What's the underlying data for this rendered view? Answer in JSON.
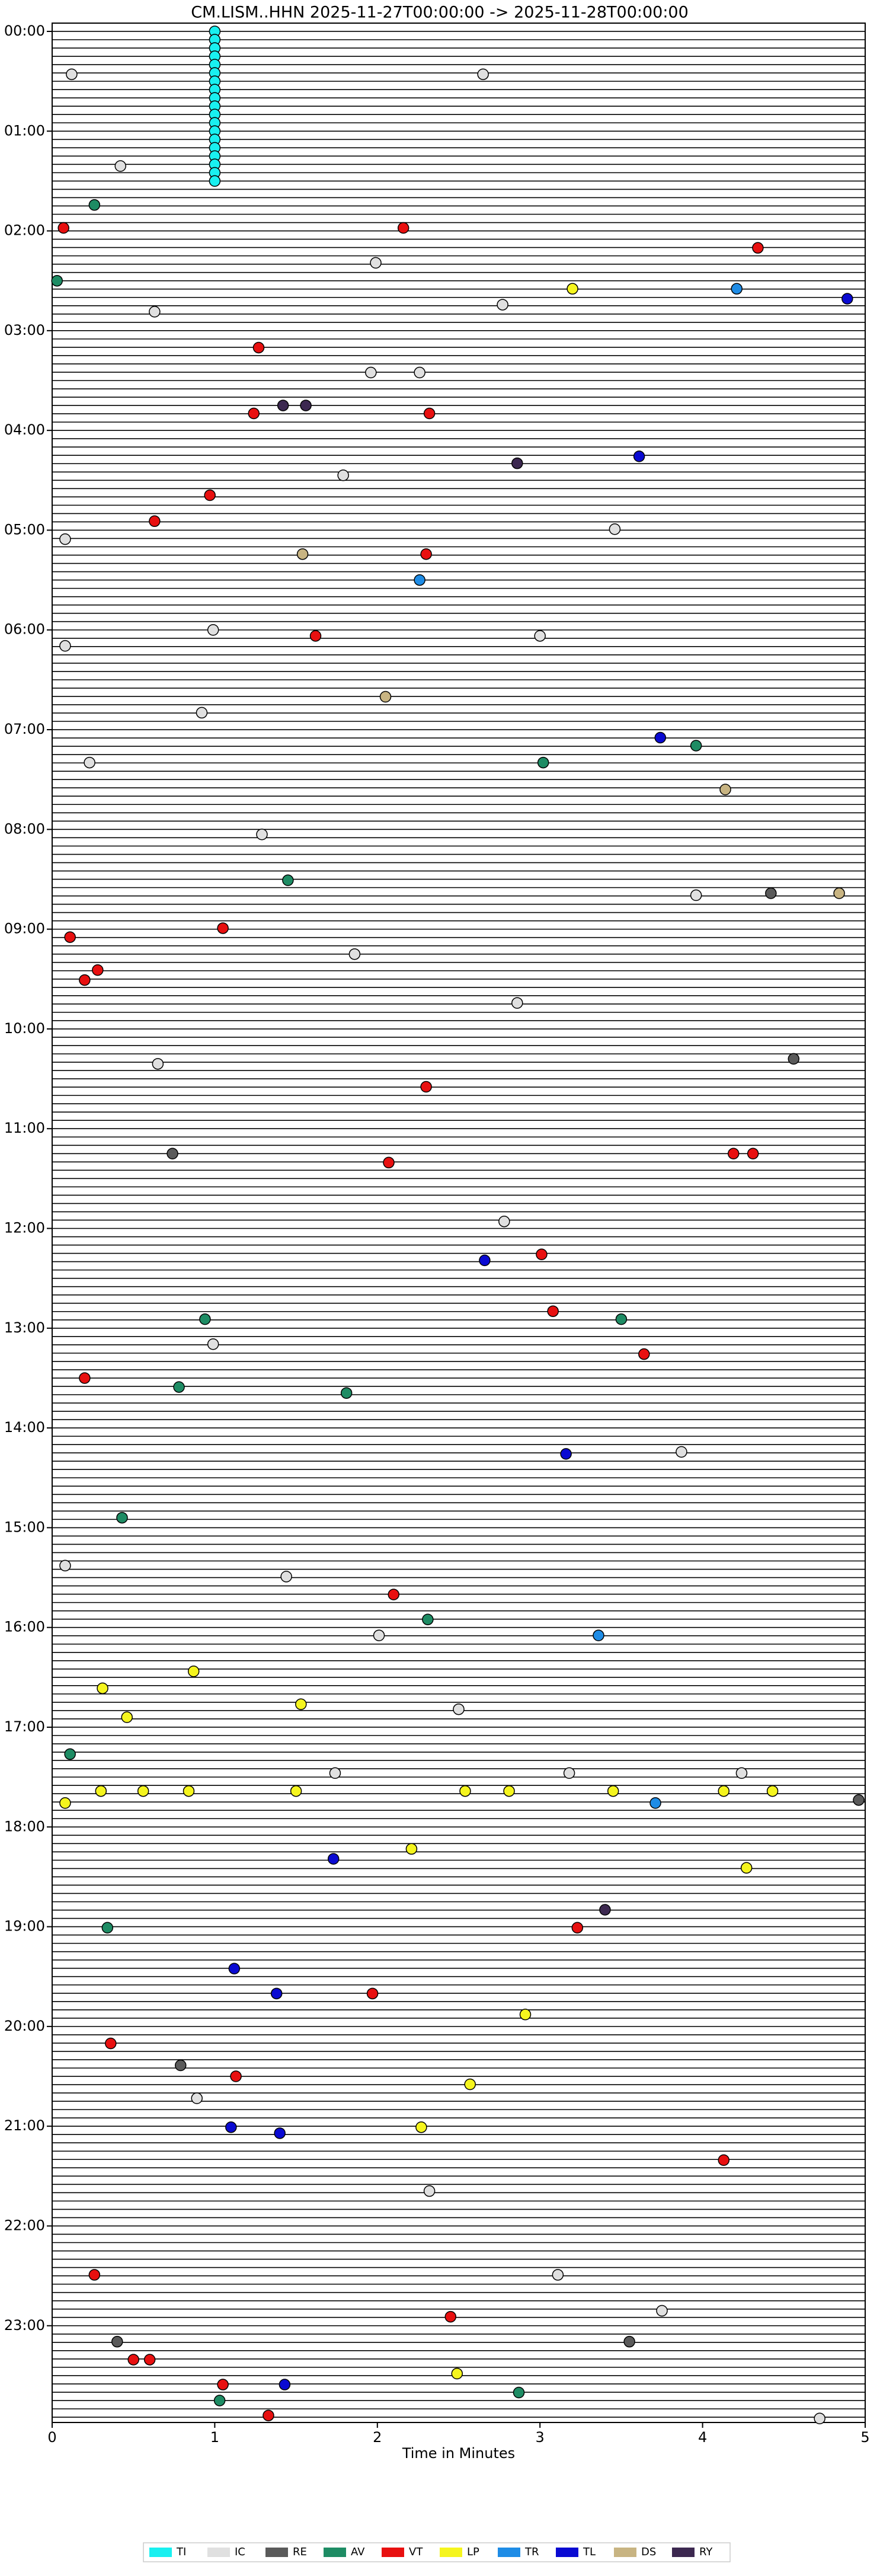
{
  "chart_data": {
    "type": "helicorder",
    "title": "CM.LISM..HHN  2025-11-27T00:00:00 -> 2025-11-28T00:00:00",
    "x_label": "Time in Minutes",
    "xlim": [
      0,
      5
    ],
    "xticks": [
      0,
      1,
      2,
      3,
      4,
      5
    ],
    "ylim": [
      -0.083,
      23.97
    ],
    "yticks": [
      {
        "value": 0,
        "label": "00:00"
      },
      {
        "value": 1,
        "label": "01:00"
      },
      {
        "value": 2,
        "label": "02:00"
      },
      {
        "value": 3,
        "label": "03:00"
      },
      {
        "value": 4,
        "label": "04:00"
      },
      {
        "value": 5,
        "label": "05:00"
      },
      {
        "value": 6,
        "label": "06:00"
      },
      {
        "value": 7,
        "label": "07:00"
      },
      {
        "value": 8,
        "label": "08:00"
      },
      {
        "value": 9,
        "label": "09:00"
      },
      {
        "value": 10,
        "label": "10:00"
      },
      {
        "value": 11,
        "label": "11:00"
      },
      {
        "value": 12,
        "label": "12:00"
      },
      {
        "value": 13,
        "label": "13:00"
      },
      {
        "value": 14,
        "label": "14:00"
      },
      {
        "value": 15,
        "label": "15:00"
      },
      {
        "value": 16,
        "label": "16:00"
      },
      {
        "value": 17,
        "label": "17:00"
      },
      {
        "value": 18,
        "label": "18:00"
      },
      {
        "value": 19,
        "label": "19:00"
      },
      {
        "value": 20,
        "label": "20:00"
      },
      {
        "value": 21,
        "label": "21:00"
      },
      {
        "value": 22,
        "label": "22:00"
      },
      {
        "value": 23,
        "label": "23:00"
      }
    ],
    "series": [
      {
        "name": "TI",
        "color": "#19f0f0",
        "x": [
          1,
          1,
          1,
          1,
          1,
          1,
          1,
          1,
          1,
          1,
          1,
          1,
          1,
          1,
          1,
          1,
          1,
          1,
          1
        ],
        "values": [
          0,
          0.083,
          0.167,
          0.25,
          0.333,
          0.417,
          0.5,
          0.583,
          0.667,
          0.75,
          0.833,
          0.917,
          1,
          1.083,
          1.167,
          1.25,
          1.333,
          1.417,
          1.5
        ]
      },
      {
        "name": "IC",
        "color": "#e0e0e0",
        "x": [
          0.12,
          2.65,
          0.42,
          1.99,
          0.63,
          2.77,
          1.96,
          2.26,
          0.08,
          1.79,
          3.46,
          0.99,
          0.08,
          3.0,
          0.92,
          0.23,
          1.29,
          3.96,
          1.86,
          2.86,
          0.65,
          2.78,
          0.99,
          3.87,
          0.08,
          1.44,
          2.01,
          2.5,
          1.74,
          3.18,
          4.24,
          0.89,
          2.32,
          3.11,
          3.75,
          4.72
        ],
        "values": [
          0.43,
          0.43,
          1.35,
          2.32,
          2.81,
          2.74,
          3.42,
          3.42,
          5.09,
          4.45,
          4.99,
          6.0,
          6.16,
          6.06,
          6.83,
          7.33,
          8.05,
          8.66,
          9.25,
          9.74,
          10.35,
          11.93,
          13.16,
          14.24,
          15.38,
          15.49,
          16.08,
          16.82,
          17.46,
          17.46,
          17.46,
          20.72,
          21.65,
          22.49,
          22.85,
          23.93
        ]
      },
      {
        "name": "RE",
        "color": "#5a5a5a",
        "x": [
          0.74,
          4.56,
          0.79,
          0.4,
          3.55,
          4.96,
          4.42
        ],
        "values": [
          11.25,
          10.3,
          20.39,
          23.16,
          23.16,
          17.73,
          8.64
        ]
      },
      {
        "name": "AV",
        "color": "#1e8c64",
        "x": [
          0.26,
          0.03,
          1.45,
          3.02,
          3.96,
          0.94,
          3.5,
          0.78,
          1.81,
          0.43,
          0.34,
          1.03,
          2.87,
          0.11,
          2.31
        ],
        "values": [
          1.74,
          2.5,
          8.51,
          7.33,
          7.16,
          12.91,
          12.91,
          13.59,
          13.65,
          14.9,
          19.01,
          23.75,
          23.67,
          17.27,
          15.92
        ]
      },
      {
        "name": "VT",
        "color": "#e81010",
        "x": [
          0.07,
          2.16,
          4.34,
          1.27,
          1.24,
          2.32,
          0.97,
          0.63,
          2.3,
          1.62,
          0.11,
          1.05,
          0.2,
          0.28,
          2.3,
          2.07,
          4.19,
          4.31,
          3.01,
          3.08,
          3.64,
          0.2,
          2.1,
          3.23,
          1.97,
          0.36,
          1.13,
          4.13,
          0.26,
          2.45,
          1.05,
          1.33,
          0.6,
          0.5
        ],
        "values": [
          1.97,
          1.97,
          2.17,
          3.17,
          3.83,
          3.83,
          4.65,
          4.91,
          5.24,
          6.06,
          9.08,
          8.99,
          9.51,
          9.41,
          10.58,
          11.34,
          11.25,
          11.25,
          12.26,
          12.83,
          13.26,
          13.5,
          15.67,
          19.01,
          19.67,
          20.17,
          20.5,
          21.34,
          22.49,
          22.91,
          23.59,
          23.9,
          23.34,
          23.34
        ]
      },
      {
        "name": "LP",
        "color": "#f5f51e",
        "x": [
          3.2,
          0.31,
          0.46,
          0.87,
          1.53,
          0.08,
          0.3,
          0.56,
          0.84,
          1.5,
          2.54,
          2.81,
          3.45,
          4.13,
          4.43,
          4.27,
          2.91,
          2.57,
          2.27,
          2.49,
          2.21
        ],
        "values": [
          2.58,
          16.61,
          16.9,
          16.44,
          16.77,
          17.76,
          17.64,
          17.64,
          17.64,
          17.64,
          17.64,
          17.64,
          17.64,
          17.64,
          17.64,
          18.41,
          19.88,
          20.58,
          21.01,
          23.48,
          18.22
        ]
      },
      {
        "name": "TR",
        "color": "#1e8ce6",
        "x": [
          2.26,
          4.21,
          3.36,
          3.71
        ],
        "values": [
          5.5,
          2.58,
          16.08,
          17.76
        ]
      },
      {
        "name": "TL",
        "color": "#0a0ad2",
        "x": [
          3.61,
          3.74,
          2.66,
          3.16,
          4.89,
          1.73,
          1.12,
          1.38,
          1.1,
          1.4,
          1.43
        ],
        "values": [
          4.26,
          7.08,
          12.32,
          14.26,
          2.68,
          18.32,
          19.42,
          19.67,
          21.01,
          21.07,
          23.59
        ]
      },
      {
        "name": "DS",
        "color": "#c8b482",
        "x": [
          1.54,
          2.05,
          4.14,
          4.84
        ],
        "values": [
          5.24,
          6.67,
          7.6,
          8.64
        ]
      },
      {
        "name": "RY",
        "color": "#3c2850",
        "x": [
          1.42,
          2.86,
          3.4,
          1.56
        ],
        "values": [
          3.75,
          4.33,
          18.83,
          3.75
        ]
      }
    ]
  }
}
